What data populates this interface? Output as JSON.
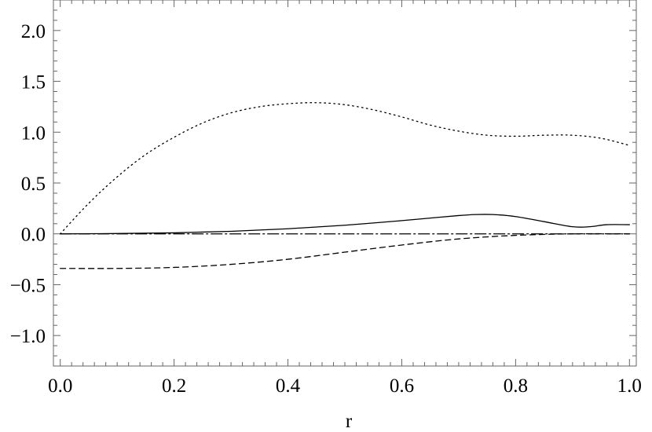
{
  "chart_data": {
    "type": "line",
    "title": "",
    "xlabel": "r",
    "ylabel": "",
    "xlim": [
      0.0,
      1.0
    ],
    "ylim": [
      -1.3,
      2.3
    ],
    "x_ticks": [
      0.0,
      0.2,
      0.4,
      0.6,
      0.8,
      1.0
    ],
    "x_tick_labels": [
      "0.0",
      "0.2",
      "0.4",
      "0.6",
      "0.8",
      "1.0"
    ],
    "y_ticks": [
      -1.0,
      -0.5,
      0.0,
      0.5,
      1.0,
      1.5,
      2.0
    ],
    "y_tick_labels": [
      "−1.0",
      "−0.5",
      "0.0",
      "0.5",
      "1.0",
      "1.5",
      "2.0"
    ],
    "grid": false,
    "legend": "none",
    "series": [
      {
        "style": "dotted",
        "x": [
          0.0,
          0.05,
          0.1,
          0.15,
          0.2,
          0.25,
          0.3,
          0.35,
          0.4,
          0.45,
          0.5,
          0.55,
          0.6,
          0.65,
          0.7,
          0.75,
          0.8,
          0.85,
          0.9,
          0.95,
          1.0
        ],
        "y": [
          0.0,
          0.3,
          0.56,
          0.78,
          0.95,
          1.09,
          1.19,
          1.25,
          1.28,
          1.29,
          1.27,
          1.22,
          1.15,
          1.07,
          1.01,
          0.97,
          0.96,
          0.97,
          0.97,
          0.94,
          0.87
        ]
      },
      {
        "style": "solid",
        "x": [
          0.0,
          0.1,
          0.2,
          0.3,
          0.4,
          0.5,
          0.6,
          0.65,
          0.7,
          0.73,
          0.76,
          0.8,
          0.85,
          0.9,
          0.93,
          0.96,
          1.0
        ],
        "y": [
          0.0,
          0.003,
          0.01,
          0.025,
          0.05,
          0.085,
          0.13,
          0.155,
          0.18,
          0.19,
          0.19,
          0.17,
          0.12,
          0.07,
          0.07,
          0.09,
          0.09
        ]
      },
      {
        "style": "dashed",
        "x": [
          0.0,
          0.1,
          0.2,
          0.3,
          0.4,
          0.5,
          0.6,
          0.7,
          0.8,
          0.9,
          1.0
        ],
        "y": [
          -0.34,
          -0.34,
          -0.33,
          -0.3,
          -0.25,
          -0.18,
          -0.11,
          -0.05,
          -0.015,
          0.0,
          0.0
        ]
      },
      {
        "style": "dash-dot",
        "x": [
          0.0,
          0.25,
          0.5,
          0.75,
          1.0
        ],
        "y": [
          0.0,
          0.0,
          0.0,
          0.0,
          0.0
        ]
      }
    ]
  },
  "colors": {
    "line": "#000000",
    "frame": "#666666",
    "background": "#ffffff"
  }
}
